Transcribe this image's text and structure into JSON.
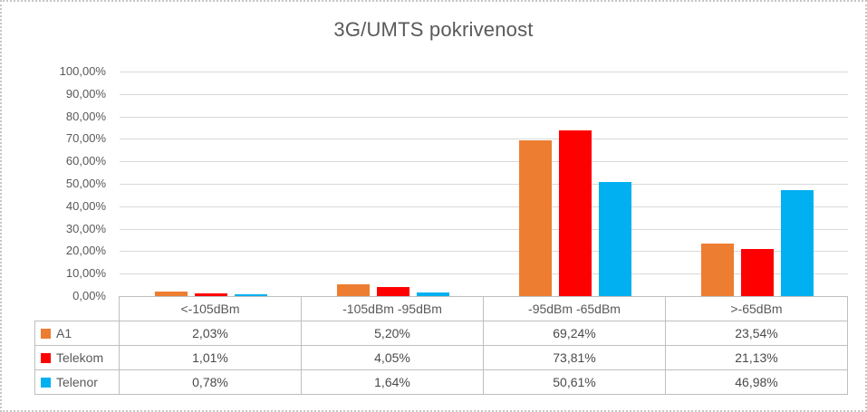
{
  "title": "3G/UMTS pokrivenost",
  "chart_data": {
    "type": "bar",
    "title": "3G/UMTS pokrivenost",
    "categories": [
      "<-105dBm",
      "-105dBm -95dBm",
      "-95dBm -65dBm",
      ">-65dBm"
    ],
    "series": [
      {
        "name": "A1",
        "color": "#ED7D31",
        "values": [
          2.03,
          5.2,
          69.24,
          23.54
        ],
        "labels": [
          "2,03%",
          "5,20%",
          "69,24%",
          "23,54%"
        ]
      },
      {
        "name": "Telekom",
        "color": "#FF0000",
        "values": [
          1.01,
          4.05,
          73.81,
          21.13
        ],
        "labels": [
          "1,01%",
          "4,05%",
          "73,81%",
          "21,13%"
        ]
      },
      {
        "name": "Telenor",
        "color": "#00B0F0",
        "values": [
          0.78,
          1.64,
          50.61,
          46.98
        ],
        "labels": [
          "0,78%",
          "1,64%",
          "50,61%",
          "46,98%"
        ]
      }
    ],
    "ylim": [
      0,
      100
    ],
    "ytick_step": 10,
    "ytick_labels": [
      "0,00%",
      "10,00%",
      "20,00%",
      "30,00%",
      "40,00%",
      "50,00%",
      "60,00%",
      "70,00%",
      "80,00%",
      "90,00%",
      "100,00%"
    ],
    "grid": "horizontal-only",
    "legend_position": "table-row-headers",
    "colors": {
      "title_text": "#595959",
      "axis_text": "#595959",
      "table_text": "#4a4a4a",
      "gridline": "#d9d9d9",
      "table_border": "#bfbfbf",
      "frame_border": "#c6c6c6"
    }
  }
}
